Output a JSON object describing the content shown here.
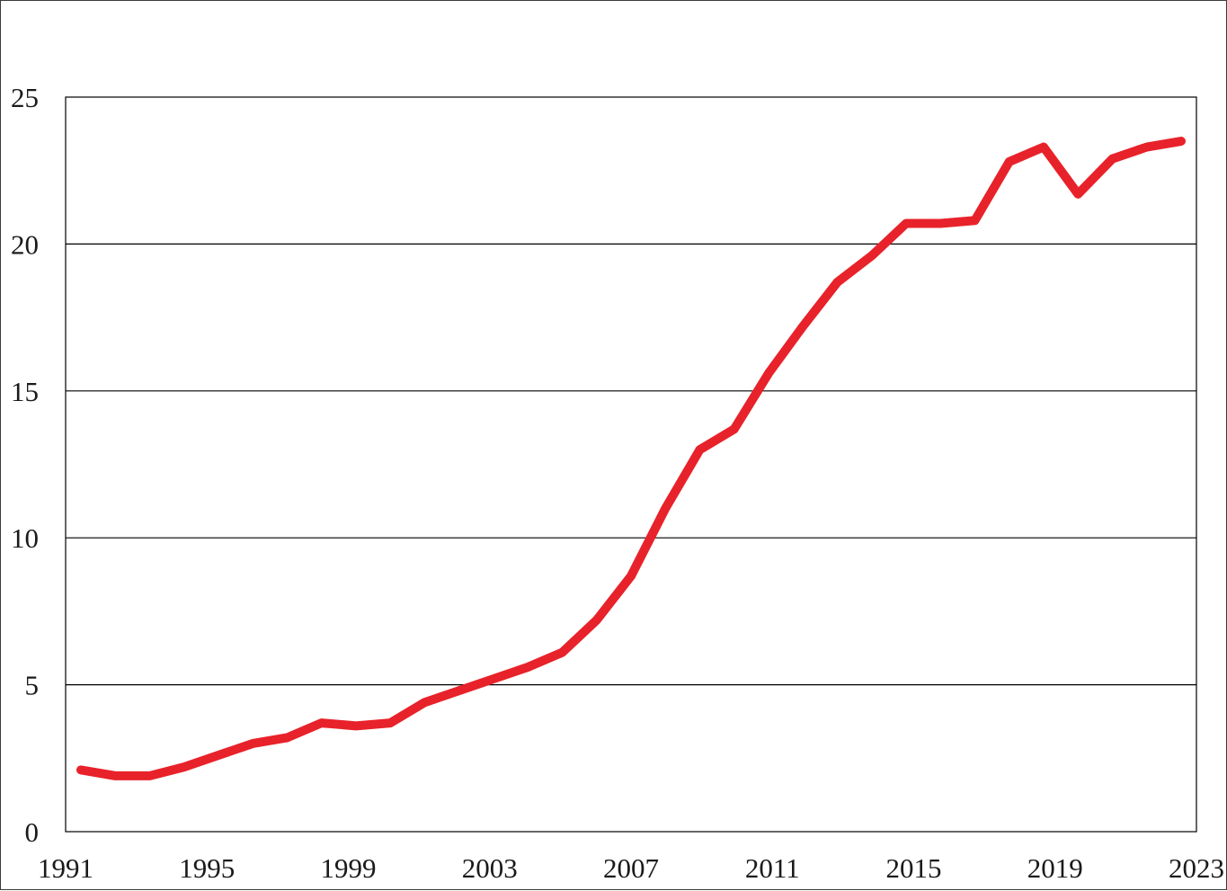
{
  "chart_data": {
    "type": "line",
    "title": "",
    "xlabel": "",
    "ylabel": "",
    "xlim": [
      1991,
      2023
    ],
    "ylim": [
      0,
      25
    ],
    "grid": true,
    "x_ticks": [
      "1991",
      "1995",
      "1999",
      "2003",
      "2007",
      "2011",
      "2015",
      "2019",
      "2023"
    ],
    "y_ticks": [
      "0",
      "5",
      "10",
      "15",
      "20",
      "25"
    ],
    "series_color": "#e8222a",
    "series": [
      {
        "x": [
          1991,
          1992,
          1993,
          1994,
          1995,
          1996,
          1997,
          1998,
          1999,
          2000,
          2001,
          2002,
          2003,
          2004,
          2005,
          2006,
          2007,
          2008,
          2009,
          2010,
          2011,
          2012,
          2013,
          2014,
          2015,
          2016,
          2017,
          2018,
          2019,
          2020,
          2021,
          2022,
          2023
        ],
        "values": [
          2.1,
          1.9,
          1.9,
          2.2,
          2.6,
          3.0,
          3.2,
          3.7,
          3.6,
          3.7,
          4.4,
          4.8,
          5.2,
          5.6,
          6.1,
          7.2,
          8.7,
          11.0,
          13.0,
          13.7,
          15.6,
          17.2,
          18.7,
          19.6,
          20.7,
          20.7,
          20.8,
          22.8,
          23.3,
          21.7,
          22.9,
          23.3,
          23.5
        ]
      }
    ]
  }
}
